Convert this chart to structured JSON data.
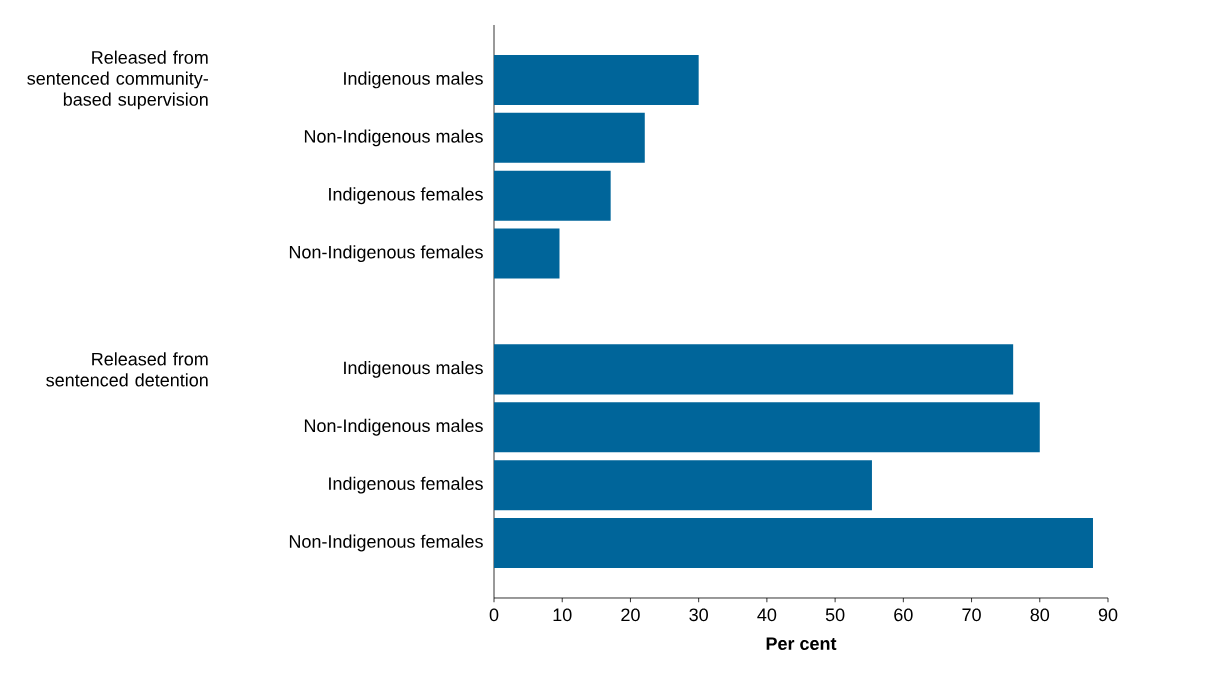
{
  "chart_data": {
    "type": "bar",
    "orientation": "horizontal",
    "xlabel": "Per cent",
    "categories": [
      "Indigenous males",
      "Non-Indigenous males",
      "Indigenous females",
      "Non-Indigenous females",
      null,
      "Indigenous males",
      "Non-Indigenous males",
      "Indigenous females",
      "Non-Indigenous females"
    ],
    "values": [
      30,
      22.1,
      17.1,
      9.6,
      null,
      76.1,
      80,
      55.4,
      87.8
    ],
    "color": "#00659a",
    "xlim": [
      0,
      90
    ],
    "xticks": [
      0,
      10,
      20,
      30,
      40,
      50,
      60,
      70,
      80,
      90
    ],
    "annotations": [
      "Released from sentenced community-based supervision",
      "Released from sentenced detention"
    ]
  }
}
